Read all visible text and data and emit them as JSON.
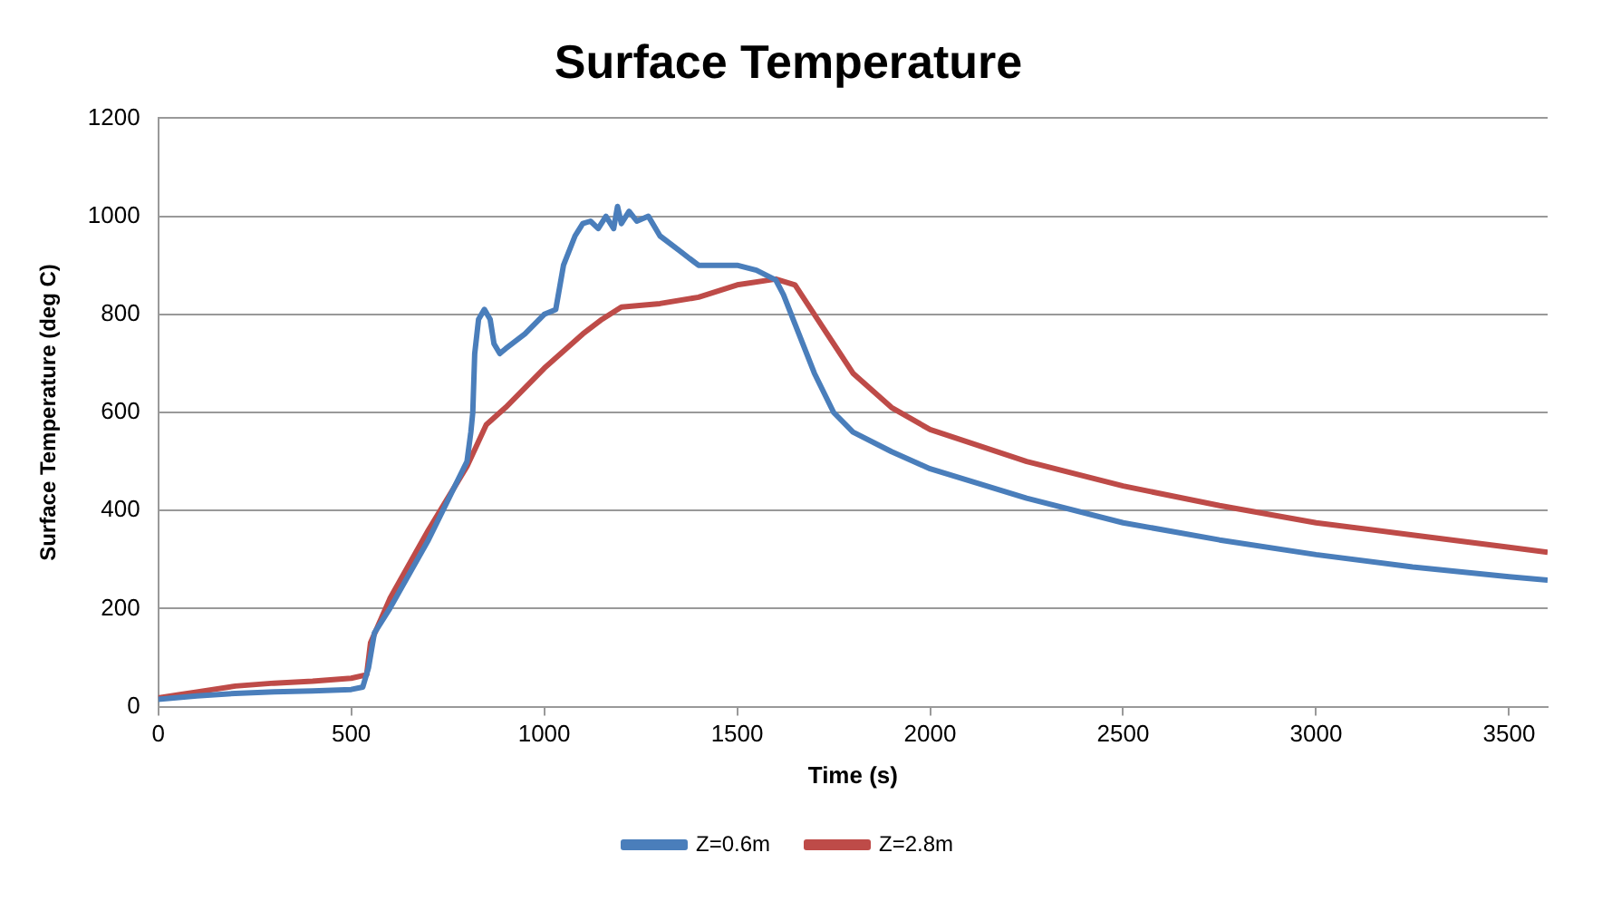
{
  "chart_data": {
    "type": "line",
    "title": "Surface Temperature",
    "xlabel": "Time (s)",
    "ylabel": "Surface Temperature (deg C)",
    "xlim": [
      0,
      3600
    ],
    "xticks": [
      0,
      500,
      1000,
      1500,
      2000,
      2500,
      3000,
      3500
    ],
    "ylim": [
      0,
      1200
    ],
    "yticks": [
      0,
      200,
      400,
      600,
      800,
      1000,
      1200
    ],
    "grid": "y",
    "legend": "bottom",
    "marker": "none",
    "line_style": "solid",
    "series": [
      {
        "name": "Z=0.6m",
        "color": "#4a7ebb",
        "x": [
          0,
          100,
          200,
          300,
          400,
          500,
          530,
          545,
          560,
          600,
          650,
          700,
          750,
          800,
          810,
          815,
          820,
          830,
          845,
          860,
          870,
          885,
          900,
          950,
          1000,
          1030,
          1050,
          1080,
          1100,
          1120,
          1140,
          1160,
          1180,
          1190,
          1200,
          1220,
          1240,
          1270,
          1300,
          1350,
          1400,
          1450,
          1500,
          1550,
          1600,
          1620,
          1650,
          1700,
          1750,
          1800,
          1900,
          2000,
          2250,
          2500,
          2750,
          3000,
          3250,
          3500,
          3600
        ],
        "values": [
          15,
          22,
          27,
          30,
          32,
          35,
          40,
          80,
          150,
          200,
          270,
          340,
          420,
          500,
          560,
          600,
          720,
          790,
          810,
          790,
          740,
          720,
          730,
          760,
          800,
          810,
          900,
          960,
          985,
          990,
          975,
          1000,
          975,
          1020,
          985,
          1010,
          990,
          1000,
          960,
          930,
          900,
          900,
          900,
          890,
          870,
          840,
          780,
          680,
          600,
          560,
          520,
          485,
          425,
          375,
          340,
          310,
          285,
          265,
          258
        ]
      },
      {
        "name": "Z=2.8m",
        "color": "#be4b48",
        "x": [
          0,
          100,
          200,
          300,
          400,
          500,
          540,
          550,
          600,
          700,
          800,
          850,
          900,
          1000,
          1100,
          1150,
          1200,
          1300,
          1400,
          1500,
          1600,
          1650,
          1700,
          1750,
          1800,
          1900,
          2000,
          2250,
          2500,
          2750,
          3000,
          3250,
          3500,
          3600
        ],
        "values": [
          18,
          30,
          42,
          48,
          52,
          58,
          65,
          130,
          220,
          360,
          490,
          575,
          610,
          690,
          760,
          790,
          815,
          822,
          835,
          860,
          872,
          860,
          800,
          740,
          680,
          610,
          565,
          500,
          450,
          410,
          375,
          350,
          325,
          315
        ]
      }
    ]
  }
}
